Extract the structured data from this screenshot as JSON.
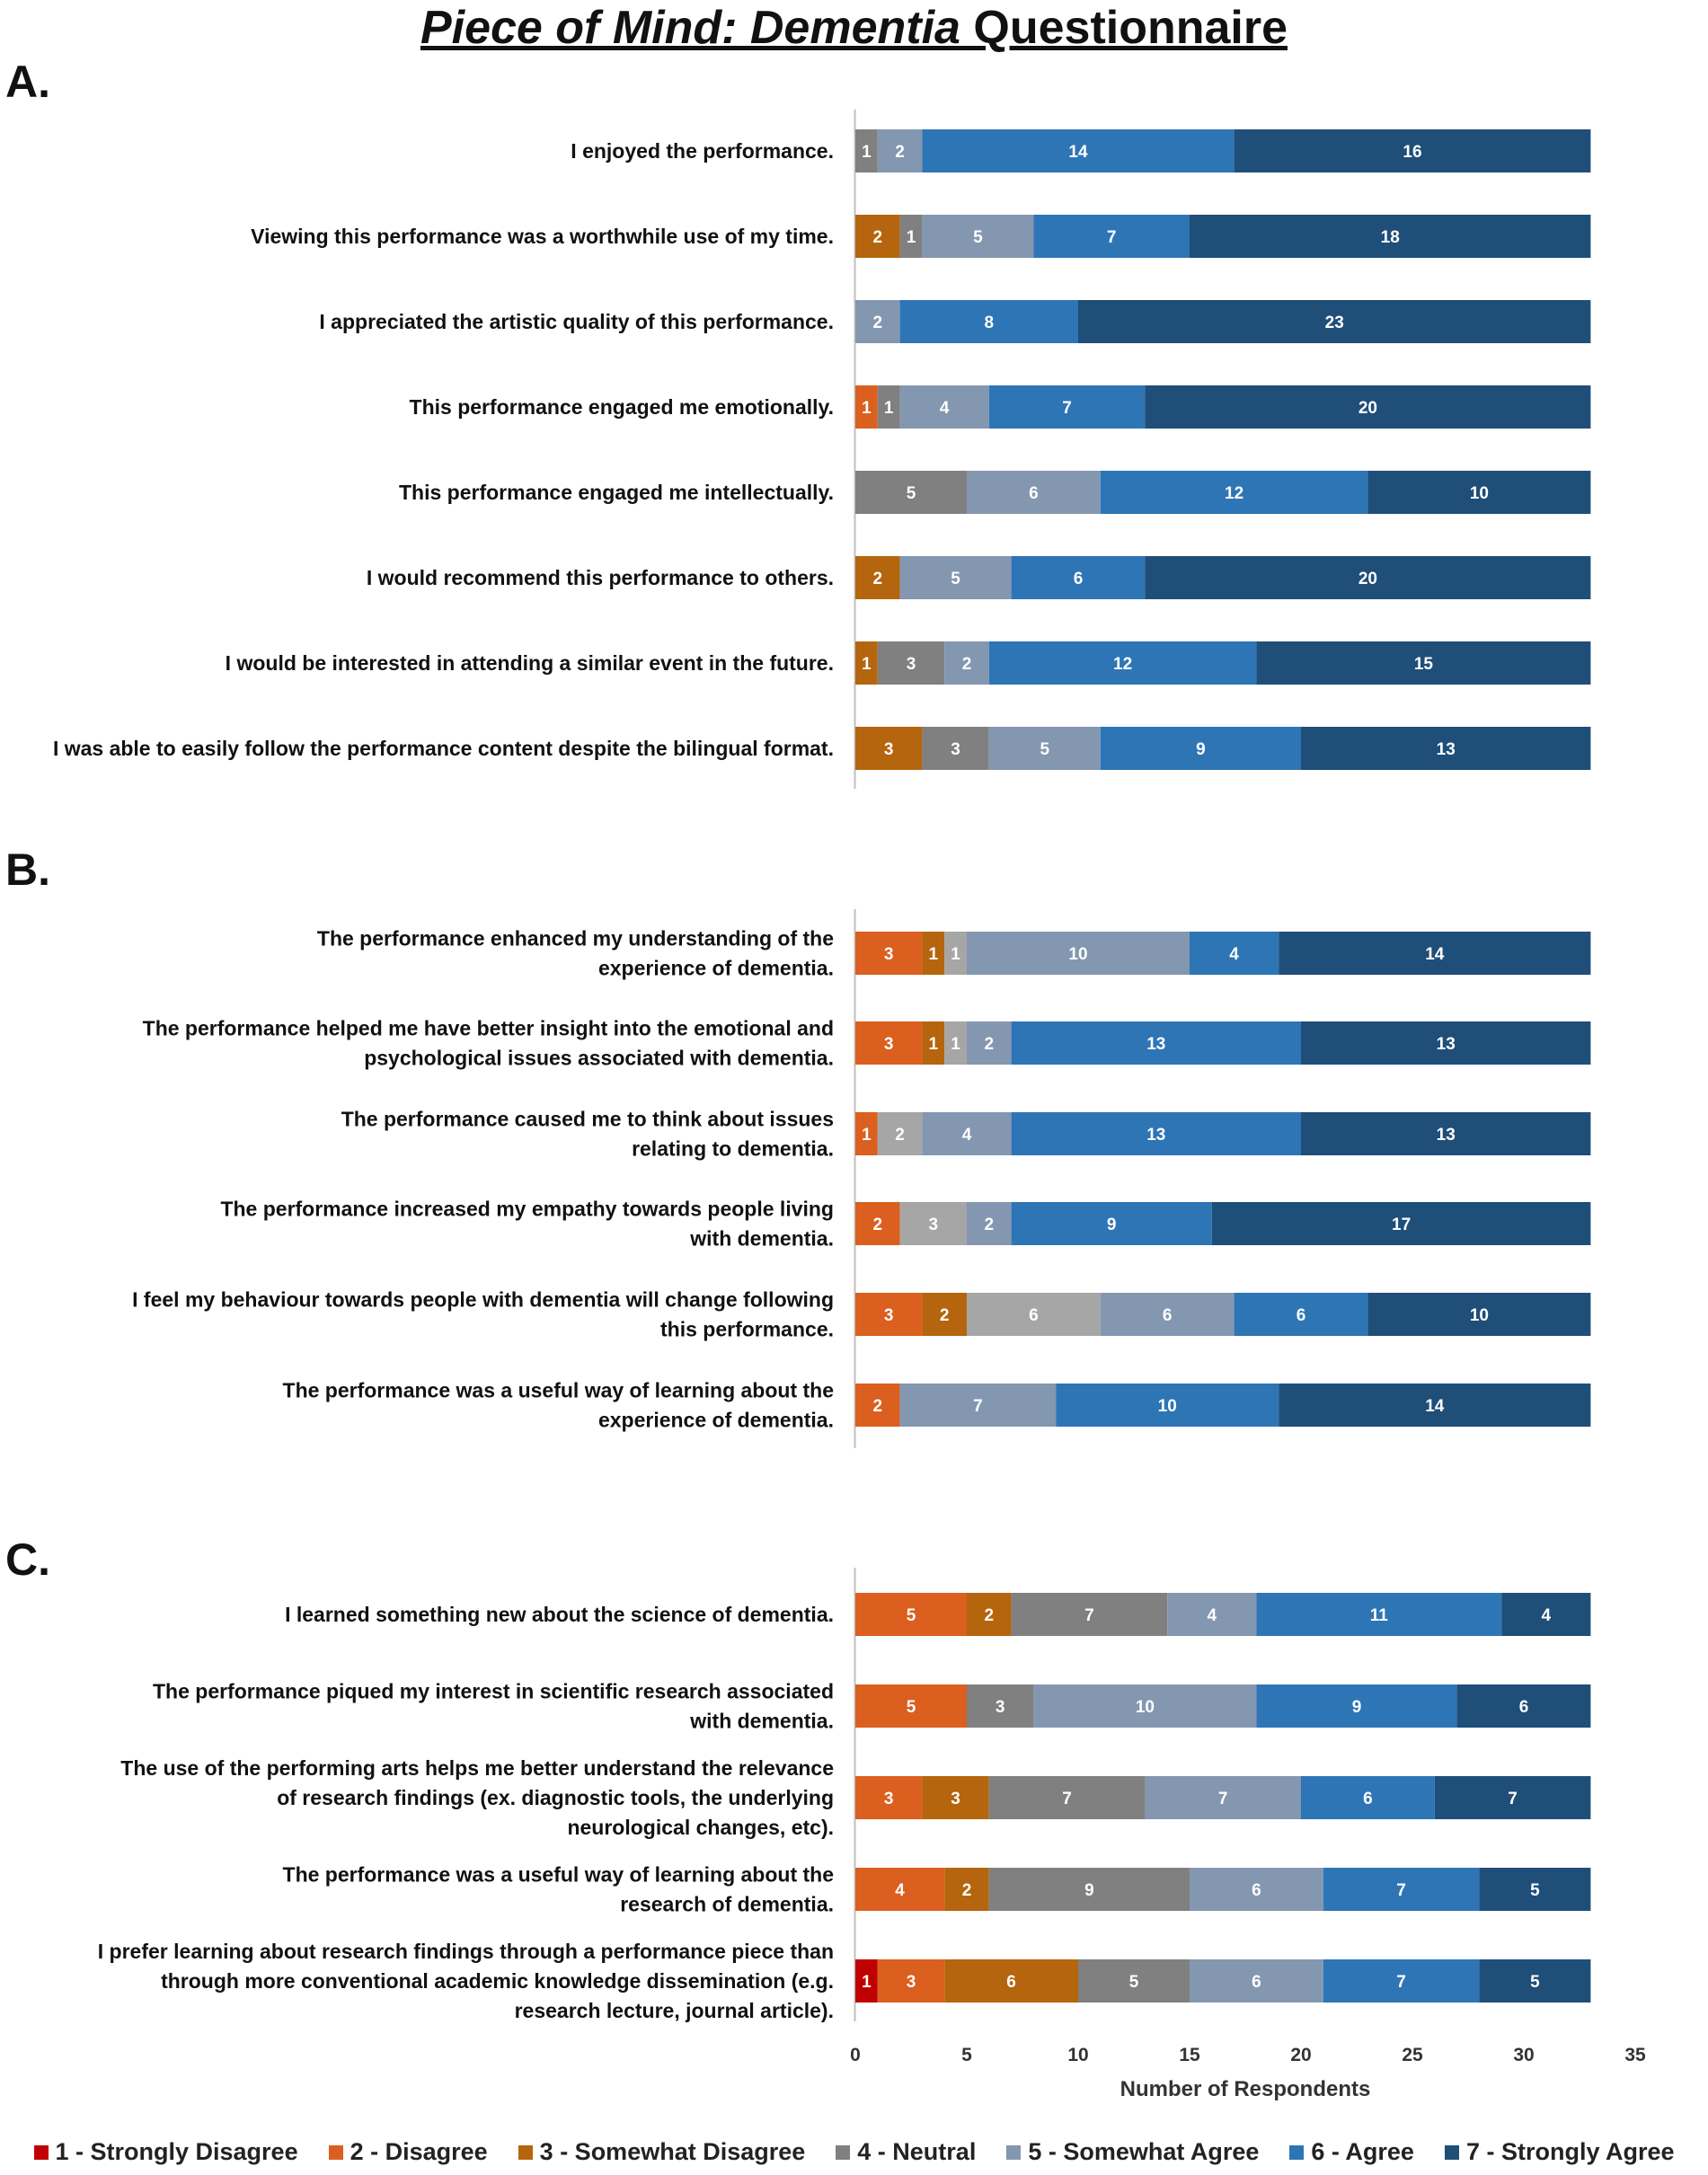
{
  "title": {
    "italic_part": "Piece of Mind: Dementia",
    "rest_part": " Questionnaire"
  },
  "colors": {
    "1": "#c00000",
    "2": "#db5f1f",
    "3": "#b5650d",
    "4": "#808080",
    "5": "#8497b0",
    "6": "#2e75b6",
    "7": "#1f4e79",
    "4b": "#a6a6a6"
  },
  "legend": [
    {
      "key": "1",
      "label": "1 - Strongly Disagree"
    },
    {
      "key": "2",
      "label": "2 - Disagree"
    },
    {
      "key": "3",
      "label": "3 - Somewhat Disagree"
    },
    {
      "key": "4",
      "label": "4 - Neutral"
    },
    {
      "key": "5",
      "label": "5 - Somewhat Agree"
    },
    {
      "key": "6",
      "label": "6 - Agree"
    },
    {
      "key": "7",
      "label": "7 - Strongly Agree"
    }
  ],
  "chart_data": [
    {
      "type": "bar",
      "orientation": "horizontal-stacked",
      "panel_label": "A.",
      "rows": [
        {
          "lines": [
            "I enjoyed the performance."
          ],
          "segments": [
            {
              "k": "4",
              "v": 1
            },
            {
              "k": "5",
              "v": 2
            },
            {
              "k": "6",
              "v": 14
            },
            {
              "k": "7",
              "v": 16
            }
          ]
        },
        {
          "lines": [
            "Viewing this performance was a worthwhile use of my time."
          ],
          "segments": [
            {
              "k": "3",
              "v": 2
            },
            {
              "k": "4",
              "v": 1
            },
            {
              "k": "5",
              "v": 5
            },
            {
              "k": "6",
              "v": 7
            },
            {
              "k": "7",
              "v": 18
            }
          ]
        },
        {
          "lines": [
            "I appreciated the artistic quality of this performance."
          ],
          "segments": [
            {
              "k": "5",
              "v": 2
            },
            {
              "k": "6",
              "v": 8
            },
            {
              "k": "7",
              "v": 23
            }
          ]
        },
        {
          "lines": [
            "This performance engaged me emotionally."
          ],
          "segments": [
            {
              "k": "2",
              "v": 1
            },
            {
              "k": "4",
              "v": 1
            },
            {
              "k": "5",
              "v": 4
            },
            {
              "k": "6",
              "v": 7
            },
            {
              "k": "7",
              "v": 20
            }
          ]
        },
        {
          "lines": [
            "This performance engaged me intellectually."
          ],
          "segments": [
            {
              "k": "4",
              "v": 5
            },
            {
              "k": "5",
              "v": 6
            },
            {
              "k": "6",
              "v": 12
            },
            {
              "k": "7",
              "v": 10
            }
          ]
        },
        {
          "lines": [
            "I would recommend this performance to others."
          ],
          "segments": [
            {
              "k": "3",
              "v": 2
            },
            {
              "k": "5",
              "v": 5
            },
            {
              "k": "6",
              "v": 6
            },
            {
              "k": "7",
              "v": 20
            }
          ]
        },
        {
          "lines": [
            "I would be interested in attending a similar event in the future."
          ],
          "segments": [
            {
              "k": "3",
              "v": 1
            },
            {
              "k": "4",
              "v": 3
            },
            {
              "k": "5",
              "v": 2
            },
            {
              "k": "6",
              "v": 12
            },
            {
              "k": "7",
              "v": 15
            }
          ]
        },
        {
          "lines": [
            "I was able to easily follow the performance content despite the bilingual format."
          ],
          "segments": [
            {
              "k": "3",
              "v": 3
            },
            {
              "k": "4",
              "v": 3
            },
            {
              "k": "5",
              "v": 5
            },
            {
              "k": "6",
              "v": 9
            },
            {
              "k": "7",
              "v": 13
            }
          ]
        }
      ]
    },
    {
      "type": "bar",
      "orientation": "horizontal-stacked",
      "panel_label": "B.",
      "rows": [
        {
          "lines": [
            "The performance enhanced my understanding of the",
            "experience of dementia."
          ],
          "segments": [
            {
              "k": "2",
              "v": 3
            },
            {
              "k": "3",
              "v": 1
            },
            {
              "k": "4b",
              "v": 1
            },
            {
              "k": "5",
              "v": 10
            },
            {
              "k": "6",
              "v": 4
            },
            {
              "k": "7",
              "v": 14
            }
          ]
        },
        {
          "lines": [
            "The performance helped me have better insight into the emotional and",
            "psychological issues associated with dementia."
          ],
          "segments": [
            {
              "k": "2",
              "v": 3
            },
            {
              "k": "3",
              "v": 1
            },
            {
              "k": "4b",
              "v": 1
            },
            {
              "k": "5",
              "v": 2
            },
            {
              "k": "6",
              "v": 13
            },
            {
              "k": "7",
              "v": 13
            }
          ]
        },
        {
          "lines": [
            "The performance caused me to think about issues",
            "relating to dementia."
          ],
          "segments": [
            {
              "k": "2",
              "v": 1
            },
            {
              "k": "4b",
              "v": 2
            },
            {
              "k": "5",
              "v": 4
            },
            {
              "k": "6",
              "v": 13
            },
            {
              "k": "7",
              "v": 13
            }
          ]
        },
        {
          "lines": [
            "The performance increased my empathy towards people living",
            "with dementia."
          ],
          "segments": [
            {
              "k": "2",
              "v": 2
            },
            {
              "k": "4b",
              "v": 3
            },
            {
              "k": "5",
              "v": 2
            },
            {
              "k": "6",
              "v": 9
            },
            {
              "k": "7",
              "v": 17
            }
          ]
        },
        {
          "lines": [
            "I feel my behaviour towards people with dementia will change following",
            "this performance."
          ],
          "segments": [
            {
              "k": "2",
              "v": 3
            },
            {
              "k": "3",
              "v": 2
            },
            {
              "k": "4b",
              "v": 6
            },
            {
              "k": "5",
              "v": 6
            },
            {
              "k": "6",
              "v": 6
            },
            {
              "k": "7",
              "v": 10
            }
          ]
        },
        {
          "lines": [
            "The performance was a useful way of learning about the",
            "experience of dementia."
          ],
          "segments": [
            {
              "k": "2",
              "v": 2
            },
            {
              "k": "5",
              "v": 7
            },
            {
              "k": "6",
              "v": 10
            },
            {
              "k": "7",
              "v": 14
            }
          ]
        }
      ]
    },
    {
      "type": "bar",
      "orientation": "horizontal-stacked",
      "panel_label": "C.",
      "xlabel": "Number of Respondents",
      "xlim": [
        0,
        35
      ],
      "xticks": [
        0,
        5,
        10,
        15,
        20,
        25,
        30,
        35
      ],
      "rows": [
        {
          "lines": [
            "I learned something new about the science of dementia."
          ],
          "segments": [
            {
              "k": "2",
              "v": 5
            },
            {
              "k": "3",
              "v": 2
            },
            {
              "k": "4",
              "v": 7
            },
            {
              "k": "5",
              "v": 4
            },
            {
              "k": "6",
              "v": 11
            },
            {
              "k": "7",
              "v": 4
            }
          ]
        },
        {
          "lines": [
            "The performance piqued my interest in scientific research associated",
            "with dementia."
          ],
          "segments": [
            {
              "k": "2",
              "v": 5
            },
            {
              "k": "4",
              "v": 3
            },
            {
              "k": "5",
              "v": 10
            },
            {
              "k": "6",
              "v": 9
            },
            {
              "k": "7",
              "v": 6
            }
          ]
        },
        {
          "lines": [
            "The use of the performing arts helps me better understand the relevance",
            "of research findings (ex. diagnostic tools,  the underlying",
            "neurological changes, etc)."
          ],
          "segments": [
            {
              "k": "2",
              "v": 3
            },
            {
              "k": "3",
              "v": 3
            },
            {
              "k": "4",
              "v": 7
            },
            {
              "k": "5",
              "v": 7
            },
            {
              "k": "6",
              "v": 6
            },
            {
              "k": "7",
              "v": 7
            }
          ]
        },
        {
          "lines": [
            "The performance was a useful way of learning about the",
            "research of dementia."
          ],
          "segments": [
            {
              "k": "2",
              "v": 4
            },
            {
              "k": "3",
              "v": 2
            },
            {
              "k": "4",
              "v": 9
            },
            {
              "k": "5",
              "v": 6
            },
            {
              "k": "6",
              "v": 7
            },
            {
              "k": "7",
              "v": 5
            }
          ]
        },
        {
          "lines": [
            "I prefer learning about research findings through a performance piece than",
            "through more conventional academic knowledge dissemination (e.g.",
            "research lecture, journal article)."
          ],
          "segments": [
            {
              "k": "1",
              "v": 1
            },
            {
              "k": "2",
              "v": 3
            },
            {
              "k": "3",
              "v": 6
            },
            {
              "k": "4",
              "v": 5
            },
            {
              "k": "5",
              "v": 6
            },
            {
              "k": "6",
              "v": 7
            },
            {
              "k": "7",
              "v": 5
            }
          ]
        }
      ]
    }
  ]
}
